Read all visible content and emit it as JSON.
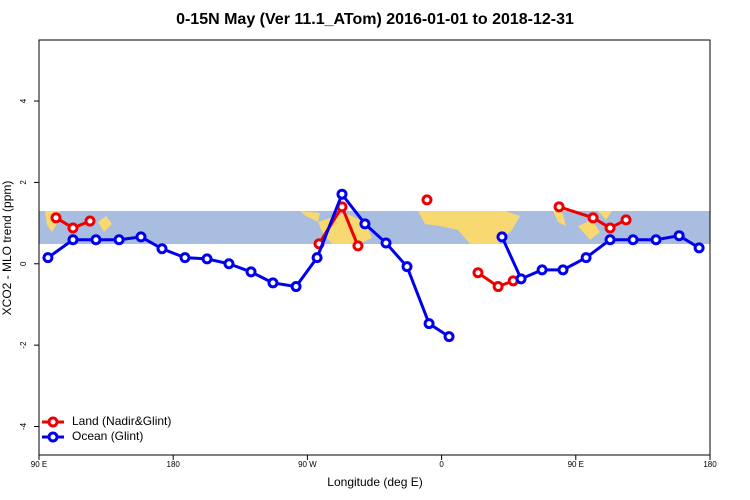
{
  "chart_data": {
    "type": "line",
    "title": "0-15N May (Ver 11.1_ATom)   2016-01-01 to 2018-12-31",
    "x_label": "Longitude (deg E)",
    "y_label": "XCO2 - MLO trend (ppm)",
    "xlim": [
      90,
      540
    ],
    "ylim": [
      -4.7,
      5.5
    ],
    "xticks": [
      {
        "value": 90,
        "label": "90 E"
      },
      180,
      {
        "value": 270,
        "label": "90 W"
      },
      {
        "value": 360,
        "label": "0"
      },
      {
        "value": 450,
        "label": "90 E"
      },
      {
        "value": 540,
        "label": "180"
      }
    ],
    "yticks": [
      -4,
      -2,
      0,
      2,
      4
    ],
    "legend": "bottom-left",
    "series": [
      {
        "name": "Land (Nadir&Glint)",
        "color": "#ee0000",
        "x": [
          101.4,
          112.8,
          124.2,
          null,
          277.8,
          293.2,
          303.9,
          null,
          350.2,
          null,
          384.4,
          397.9,
          408.0,
          null,
          438.8,
          461.6,
          473.0,
          483.7
        ],
        "values": [
          1.13,
          0.88,
          1.05,
          null,
          0.49,
          1.4,
          0.44,
          null,
          1.57,
          null,
          -0.22,
          -0.56,
          -0.42,
          null,
          1.4,
          1.13,
          0.88,
          1.08
        ]
      },
      {
        "name": "Ocean (Glint)",
        "color": "#0000ee",
        "x": [
          96.0,
          112.8,
          128.2,
          143.7,
          158.4,
          172.5,
          187.9,
          202.7,
          217.4,
          232.2,
          246.9,
          262.4,
          276.5,
          293.2,
          308.6,
          322.7,
          336.8,
          351.6,
          365.0,
          null,
          400.5,
          413.3,
          427.4,
          441.4,
          456.9,
          473.0,
          488.4,
          503.8,
          519.3,
          532.7
        ],
        "values": [
          0.15,
          0.59,
          0.59,
          0.59,
          0.66,
          0.37,
          0.15,
          0.12,
          0.0,
          -0.2,
          -0.47,
          -0.56,
          0.15,
          1.71,
          0.98,
          0.51,
          -0.07,
          -1.47,
          -1.79,
          null,
          0.66,
          -0.37,
          -0.15,
          -0.15,
          0.15,
          0.59,
          0.59,
          0.59,
          0.69,
          0.39
        ]
      }
    ]
  }
}
